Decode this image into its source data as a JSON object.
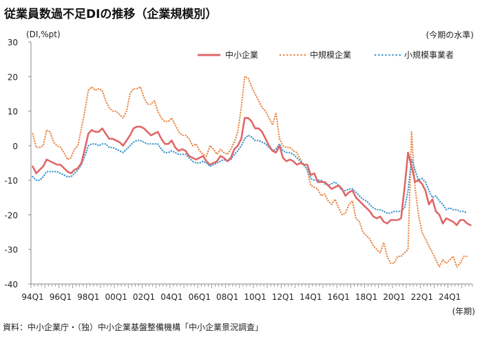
{
  "title": "従業員数過不足DIの推移（企業規模別）",
  "unit_label": "(DI,%pt)",
  "level_note": "(今期の水準)",
  "period_label": "(年期)",
  "source": "資料：中小企業庁・（独）中小企業基盤整備機構「中小企業景況調査」",
  "colors": {
    "sme": "#e06666",
    "medium": "#e8894a",
    "small": "#3f97d0",
    "axis": "#888888"
  },
  "chart_data": {
    "type": "line",
    "title": "従業員数過不足DIの推移（企業規模別）",
    "xlabel": "(年期)",
    "ylabel": "(DI,%pt)",
    "ylim": [
      -40,
      30
    ],
    "yticks": [
      "30",
      "20",
      "10",
      "0",
      "-10",
      "-20",
      "-30",
      "-40"
    ],
    "ytick_values": [
      30,
      20,
      10,
      0,
      -10,
      -20,
      -30,
      -40
    ],
    "xtick_labels": [
      "94Q1",
      "96Q1",
      "98Q1",
      "00Q1",
      "02Q1",
      "04Q1",
      "06Q1",
      "08Q1",
      "10Q1",
      "12Q1",
      "14Q1",
      "16Q1",
      "18Q1",
      "20Q1",
      "22Q1",
      "24Q1"
    ],
    "x_start": "94Q1",
    "x_end": "24Q4",
    "grid": false,
    "legend_position": "top-right",
    "series": [
      {
        "name": "中小企業",
        "style": "solid",
        "values": [
          -6,
          -8,
          -7,
          -6,
          -4,
          -4.5,
          -5,
          -5.5,
          -5.5,
          -6.5,
          -7.5,
          -8,
          -7,
          -6.5,
          -5,
          -1,
          3.5,
          4.5,
          4,
          4,
          5,
          3.5,
          2,
          2,
          1.5,
          1,
          0,
          1.5,
          3,
          5,
          5.5,
          5.5,
          5,
          4,
          3,
          3.5,
          4,
          2,
          0.5,
          0.5,
          1.5,
          -0.5,
          -1.5,
          -1,
          -1.5,
          -3,
          -3.5,
          -4,
          -3.5,
          -3,
          -4.5,
          -5.5,
          -5,
          -4.5,
          -3,
          -3.5,
          -4.5,
          -3.5,
          -1,
          0,
          2,
          8,
          8,
          7,
          5,
          5,
          4,
          2,
          0,
          -1.5,
          -2,
          0,
          -3.5,
          -4.5,
          -4,
          -4.5,
          -5.5,
          -5,
          -5.5,
          -5.5,
          -8.5,
          -8,
          -10.5,
          -10.5,
          -10.5,
          -11.5,
          -12.5,
          -12,
          -11.5,
          -12.5,
          -14.5,
          -13.5,
          -13,
          -15,
          -16,
          -17,
          -18,
          -19,
          -20.5,
          -21,
          -20.5,
          -22,
          -22.5,
          -21.5,
          -21.5,
          -21.5,
          -21,
          -12,
          -2,
          -6,
          -10.5,
          -10,
          -11,
          -13,
          -17,
          -15.5,
          -19,
          -20,
          -22.5,
          -21,
          -21.5,
          -22,
          -23,
          -21.5,
          -21.5,
          -22.5,
          -23
        ]
      },
      {
        "name": "中規模企業",
        "style": "dotted",
        "values": [
          3.5,
          -0.5,
          -0.5,
          0,
          4.5,
          4,
          1,
          0,
          -0.5,
          -2,
          -4,
          -3.5,
          -1,
          0,
          5,
          10,
          16,
          17,
          16,
          16.5,
          16,
          13,
          11,
          10,
          10,
          9,
          8,
          10,
          15,
          16.5,
          16.5,
          17,
          14,
          12,
          12,
          13,
          10,
          8,
          7,
          7,
          8,
          6,
          4,
          3,
          3,
          2,
          0,
          0.5,
          -1.5,
          -2.5,
          -3,
          0,
          -1,
          -2.5,
          -1,
          -2,
          -2.5,
          -1,
          1,
          4,
          11,
          20,
          19.5,
          17,
          15,
          13,
          11,
          10,
          8,
          6,
          9.5,
          2,
          0,
          -0.5,
          -0.5,
          -1.5,
          -2,
          -4,
          -5.5,
          -7,
          -11.5,
          -12,
          -12.5,
          -14.5,
          -14,
          -16,
          -17,
          -15.5,
          -18,
          -20,
          -19.5,
          -17,
          -16,
          -21,
          -22,
          -25,
          -26,
          -27,
          -29,
          -30,
          -31,
          -28,
          -32,
          -34,
          -34,
          -32,
          -32,
          -31,
          -30,
          4,
          -12,
          -20,
          -25,
          -27,
          -29,
          -31,
          -33,
          -35,
          -33,
          -34,
          -33,
          -32,
          -35,
          -34,
          -32,
          -32
        ]
      },
      {
        "name": "小規模事業者",
        "style": "dotted",
        "values": [
          -9,
          -10,
          -10,
          -9,
          -7.5,
          -7.5,
          -7.5,
          -7.5,
          -8,
          -8.5,
          -9,
          -9,
          -8,
          -7,
          -5.5,
          -3,
          0,
          0.5,
          0.5,
          0,
          0.5,
          0.5,
          -0.5,
          -0.5,
          -1,
          -1.5,
          -2,
          -1,
          0,
          1,
          1.5,
          1.5,
          1,
          0.5,
          0.5,
          0.5,
          0.5,
          -1,
          -2,
          -2,
          -1.5,
          -2,
          -2.5,
          -2.5,
          -2.5,
          -3.5,
          -4.5,
          -5,
          -5,
          -4.5,
          -5,
          -6,
          -5.5,
          -5,
          -4.5,
          -4,
          -4.5,
          -4,
          -2.5,
          -1.5,
          0,
          2,
          3,
          2.5,
          1.5,
          1.5,
          1,
          0.5,
          -0.5,
          -1.5,
          -1,
          0.5,
          -1.5,
          -2,
          -2,
          -2.5,
          -3.5,
          -4.5,
          -5.5,
          -7,
          -9.5,
          -10,
          -10,
          -10,
          -11,
          -11.5,
          -11,
          -10.5,
          -11.5,
          -13,
          -13,
          -12.5,
          -12.5,
          -13.5,
          -14.5,
          -15.5,
          -16,
          -17,
          -18,
          -18.5,
          -18.5,
          -19,
          -19.5,
          -19.5,
          -19,
          -19,
          -19,
          -18,
          -13,
          -4,
          -7,
          -10,
          -9.5,
          -10.5,
          -13,
          -15,
          -14.5,
          -16,
          -17,
          -18.5,
          -18,
          -18.5,
          -18.5,
          -19,
          -19,
          -19.5
        ]
      }
    ]
  }
}
